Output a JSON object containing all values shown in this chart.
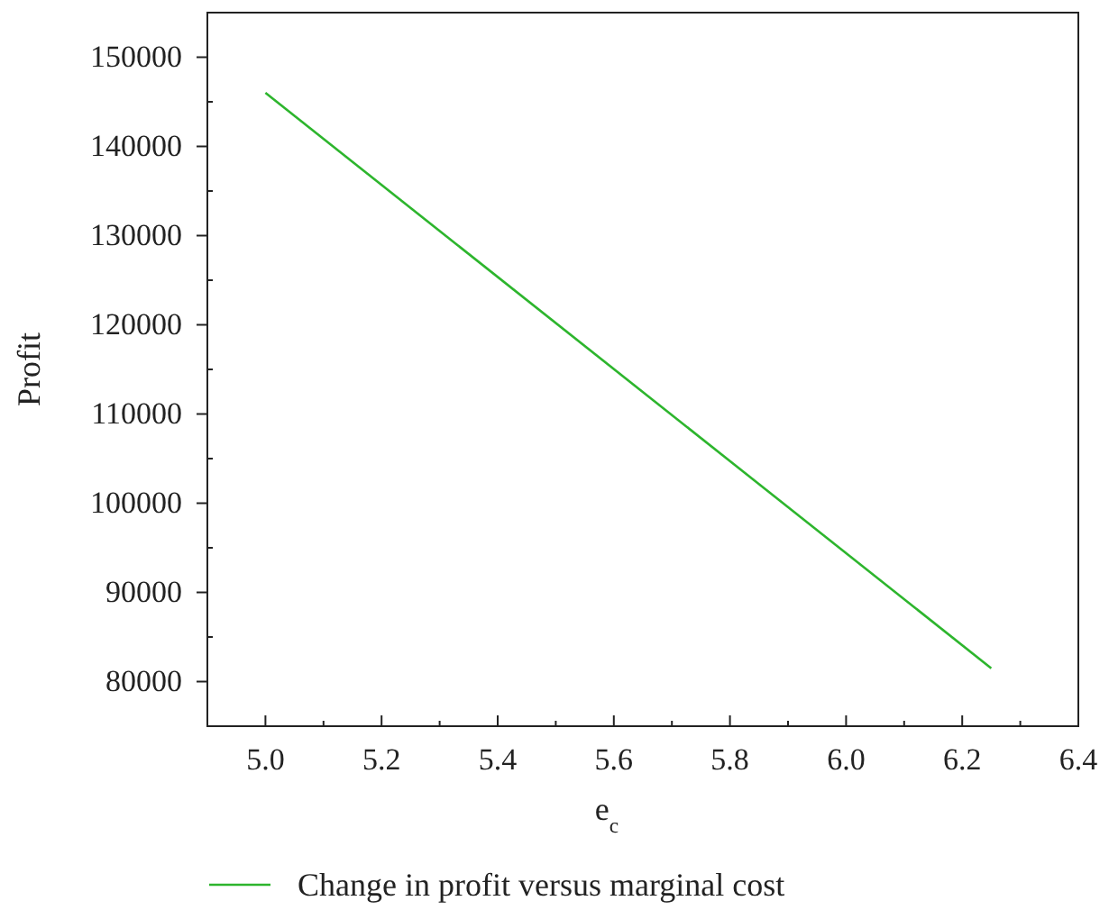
{
  "chart_data": {
    "type": "line",
    "xlabel": "e$_{c}$",
    "ylabel": "Profit",
    "x": [
      5.0,
      6.25
    ],
    "series": [
      {
        "name": "Change in profit versus marginal cost",
        "color": "#2db52d",
        "values": [
          146000,
          81500
        ]
      }
    ],
    "xlim": [
      4.9,
      6.4
    ],
    "xticks": [
      {
        "value": 5.0,
        "label": "5.0"
      },
      {
        "value": 5.2,
        "label": "5.2"
      },
      {
        "value": 5.4,
        "label": "5.4"
      },
      {
        "value": 5.6,
        "label": "5.6"
      },
      {
        "value": 5.8,
        "label": "5.8"
      },
      {
        "value": 6.0,
        "label": "6.0"
      },
      {
        "value": 6.2,
        "label": "6.2"
      },
      {
        "value": 6.4,
        "label": "6.4"
      }
    ],
    "ylim": [
      75000,
      155000
    ],
    "yticks": [
      80000,
      90000,
      100000,
      110000,
      120000,
      130000,
      140000,
      150000
    ],
    "grid": false,
    "legend": "bottom",
    "marker": "none",
    "line_style": "solid"
  }
}
